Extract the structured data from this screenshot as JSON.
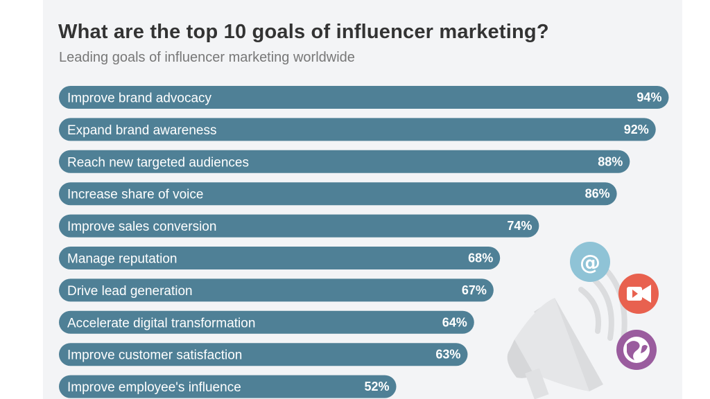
{
  "chart_data": {
    "type": "bar",
    "orientation": "horizontal",
    "title": "What are the top 10 goals of influencer marketing?",
    "subtitle": "Leading goals of influencer marketing worldwide",
    "categories": [
      "Improve brand advocacy",
      "Expand brand awareness",
      "Reach new targeted audiences",
      "Increase share of voice",
      "Improve sales conversion",
      "Manage reputation",
      "Drive lead generation",
      "Accelerate digital transformation",
      "Improve customer satisfaction",
      "Improve employee's influence"
    ],
    "values": [
      94,
      92,
      88,
      86,
      74,
      68,
      67,
      64,
      63,
      52
    ],
    "value_labels": [
      "94%",
      "92%",
      "88%",
      "86%",
      "74%",
      "68%",
      "67%",
      "64%",
      "63%",
      "52%"
    ],
    "unit": "%",
    "xlim": [
      0,
      100
    ],
    "grid": false,
    "legend": "none",
    "colors": {
      "bar": "#4f8096",
      "title": "#333333",
      "subtitle": "#777777",
      "background": "#f3f4f6"
    }
  },
  "decorations": {
    "icons": [
      {
        "name": "at-sign-icon",
        "color": "#8fc3d6"
      },
      {
        "name": "video-camera-icon",
        "color": "#e8614f"
      },
      {
        "name": "globe-icon",
        "color": "#9a5c9e"
      },
      {
        "name": "megaphone-icon",
        "color": "#d9dadc"
      }
    ]
  }
}
